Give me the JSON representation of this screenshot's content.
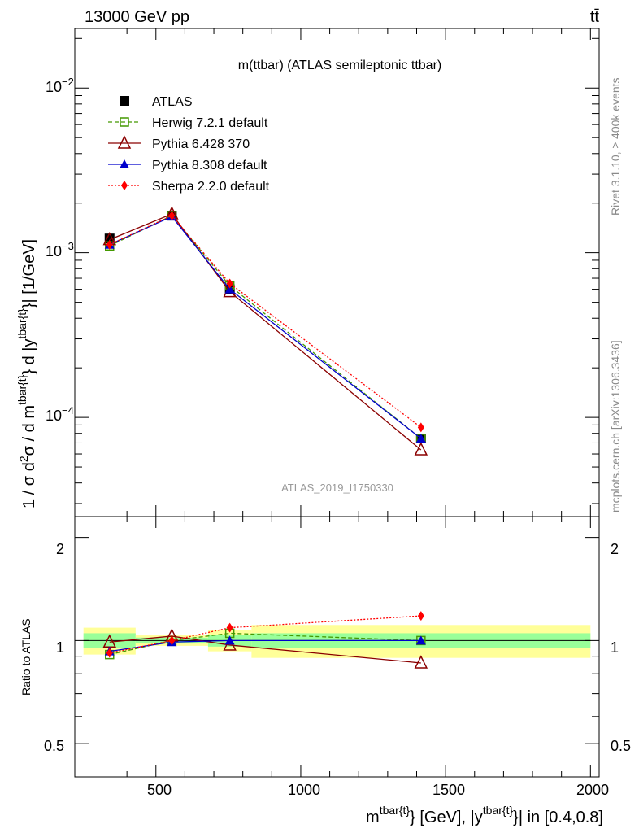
{
  "header": {
    "left": "13000 GeV pp",
    "right": "tt̄"
  },
  "side_labels": {
    "rivet": "Rivet 3.1.10, ≥ 400k events",
    "mcplots": "mcplots.cern.ch [arXiv:1306.3436]"
  },
  "main_plot": {
    "title": "m(ttbar) (ATLAS semileptonic ttbar)",
    "watermark": "ATLAS_2019_I1750330",
    "ylabel": "1 / σ d²σ / d m^{tbar{t}} d |y^{tbar{t}}| [1/GeV]",
    "ylabel_parts": {
      "a": "1 / σ d",
      "b": "2",
      "c": "σ / d m",
      "d": "tbar{t}",
      "e": "} d |y",
      "f": "tbar{t}",
      "g": "}| [1/GeV]"
    },
    "y_tick_labels": {
      "e4": "10",
      "e4sup": "−4",
      "e3": "10",
      "e3sup": "−3",
      "e2": "10",
      "e2sup": "−2"
    }
  },
  "ratio_plot": {
    "ylabel": "Ratio to ATLAS",
    "y_tick_labels": [
      "0.5",
      "1",
      "2"
    ]
  },
  "x_axis": {
    "tick_labels": [
      "500",
      "1000",
      "1500",
      "2000"
    ],
    "label_parts": {
      "a": "m",
      "b": "tbar{t}",
      "c": "} [GeV], |y",
      "d": "tbar{t}",
      "e": "}| in [0.4,0.8]"
    }
  },
  "legend": [
    {
      "label": "ATLAS",
      "color": "#000000",
      "marker": "filled-square"
    },
    {
      "label": "Herwig 7.2.1 default",
      "color": "#449900",
      "marker": "open-square",
      "dash": "dashed"
    },
    {
      "label": "Pythia 6.428 370",
      "color": "#8b0000",
      "marker": "open-triangle"
    },
    {
      "label": "Pythia 8.308 default",
      "color": "#0000cc",
      "marker": "filled-triangle"
    },
    {
      "label": "Sherpa 2.2.0 default",
      "color": "#ff0000",
      "marker": "filled-diamond",
      "dash": "dotted"
    }
  ],
  "chart_data": {
    "type": "line",
    "title": "m(ttbar) (ATLAS semileptonic ttbar)",
    "xlim": [
      220,
      2030
    ],
    "ylim": [
      2.5e-05,
      0.023
    ],
    "yscale": "log",
    "ratio_ylim": [
      0.4,
      2.3
    ],
    "ratio_yscale": "log",
    "x": [
      340,
      555,
      755,
      1415
    ],
    "bin_edges": [
      250,
      430,
      680,
      830,
      2000
    ],
    "data": {
      "name": "ATLAS",
      "values": [
        0.00122,
        0.00168,
        0.0006,
        7.45e-05
      ],
      "band_stat_ratio": [
        0.05,
        0.02,
        0.04,
        0.05
      ],
      "band_total_ratio": [
        0.09,
        0.035,
        0.07,
        0.11
      ]
    },
    "series": [
      {
        "name": "Herwig 7.2.1 default",
        "values": [
          0.0011,
          0.00168,
          0.00063,
          7.45e-05
        ],
        "ratio": [
          0.91,
          1.0,
          1.05,
          1.0
        ]
      },
      {
        "name": "Pythia 6.428 370",
        "values": [
          0.0012,
          0.00172,
          0.00058,
          6.35e-05
        ],
        "ratio": [
          0.99,
          1.03,
          0.97,
          0.86
        ]
      },
      {
        "name": "Pythia 8.308 default",
        "values": [
          0.00112,
          0.00166,
          0.0006,
          7.45e-05
        ],
        "ratio": [
          0.93,
          0.99,
          1.0,
          1.0
        ]
      },
      {
        "name": "Sherpa 2.2.0 default",
        "values": [
          0.00112,
          0.00168,
          0.00065,
          8.7e-05
        ],
        "ratio": [
          0.92,
          1.0,
          1.09,
          1.18
        ]
      }
    ]
  }
}
